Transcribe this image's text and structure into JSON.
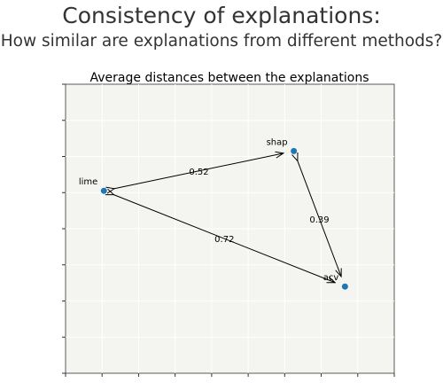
{
  "figure": {
    "title": "Consistency of explanations:",
    "subtitle": "How similar are explanations from different methods?"
  },
  "chart_data": {
    "type": "scatter",
    "title": "Average distances between the explanations",
    "xlabel": "",
    "ylabel": "",
    "xlim": [
      0,
      9
    ],
    "ylim": [
      0,
      8
    ],
    "grid": true,
    "points": [
      {
        "label": "lime",
        "x": 1.05,
        "y": 5.05
      },
      {
        "label": "shap",
        "x": 6.25,
        "y": 6.15
      },
      {
        "label": "acv",
        "x": 7.65,
        "y": 2.4
      }
    ],
    "edges": [
      {
        "from": "lime",
        "to": "shap",
        "label": "0.52"
      },
      {
        "from": "shap",
        "to": "acv",
        "label": "0.39"
      },
      {
        "from": "lime",
        "to": "acv",
        "label": "0.72"
      }
    ],
    "colors": {
      "point": "#1f77b4",
      "background": "#f4f4f0",
      "grid": "#ffffff",
      "arrow": "#000000"
    }
  }
}
